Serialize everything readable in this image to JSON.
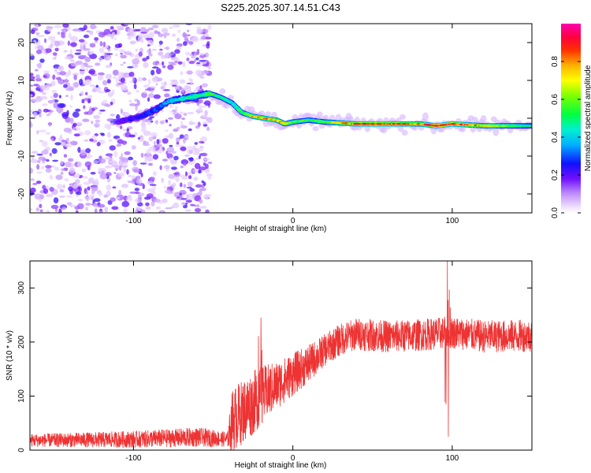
{
  "title": "S225.2025.307.14.51.C43",
  "chart_data": [
    {
      "type": "heatmap",
      "name": "spectrogram",
      "xlabel": "Height of straight line (km)",
      "ylabel": "Frequency (Hz)",
      "xlim": [
        -165,
        150
      ],
      "ylim": [
        -25,
        25
      ],
      "xticks": [
        -100,
        0,
        100
      ],
      "yticks": [
        20,
        10,
        0,
        -10,
        -20
      ],
      "colorbar": {
        "label": "Normalized spectral amplitude",
        "range": [
          0,
          1
        ],
        "ticks": [
          0.0,
          0.2,
          0.4,
          0.6,
          0.8
        ]
      },
      "noise_region_x": [
        -165,
        -52
      ],
      "ridge": {
        "description": "dominant frequency track",
        "x": [
          -110,
          -95,
          -85,
          -78,
          -52,
          -45,
          -38,
          -32,
          -25,
          -18,
          -10,
          -5,
          0,
          10,
          20,
          40,
          60,
          80,
          90,
          100,
          120,
          150
        ],
        "y": [
          -1,
          0.5,
          2.5,
          4.5,
          6.5,
          5.5,
          4,
          1.5,
          0.5,
          0,
          -0.5,
          -1.5,
          -1,
          -0.5,
          -1,
          -1.5,
          -1.5,
          -1.5,
          -2,
          -1.5,
          -2,
          -2
        ],
        "amplitude": [
          0.2,
          0.25,
          0.3,
          0.35,
          0.55,
          0.5,
          0.45,
          0.55,
          0.75,
          0.8,
          0.78,
          0.75,
          0.6,
          0.55,
          0.6,
          0.9,
          0.9,
          0.8,
          0.95,
          0.9,
          0.75,
          0.45
        ]
      }
    },
    {
      "type": "line",
      "name": "snr",
      "xlabel": "Height of straight line (km)",
      "ylabel": "SNR (10 * v/v)",
      "xlim": [
        -165,
        150
      ],
      "ylim": [
        0,
        350
      ],
      "xticks": [
        -100,
        0,
        100
      ],
      "yticks": [
        0,
        100,
        200,
        300
      ],
      "color": "#ee3333",
      "trend": {
        "x": [
          -165,
          -100,
          -60,
          -41,
          -38,
          -30,
          -20,
          -10,
          0,
          10,
          20,
          30,
          40,
          60,
          80,
          100,
          120,
          150
        ],
        "y": [
          18,
          20,
          24,
          20,
          55,
          75,
          100,
          120,
          140,
          160,
          185,
          205,
          215,
          210,
          213,
          218,
          210,
          212
        ]
      },
      "noise_amplitude": {
        "x": [
          -165,
          -60,
          -41,
          -38,
          -25,
          -10,
          20,
          150
        ],
        "y": [
          12,
          18,
          14,
          60,
          60,
          45,
          30,
          30
        ]
      },
      "spikes": [
        {
          "x": -20,
          "y": 245
        },
        {
          "x": 97,
          "y": 350
        },
        {
          "x": 97.5,
          "y": 25
        }
      ]
    }
  ]
}
